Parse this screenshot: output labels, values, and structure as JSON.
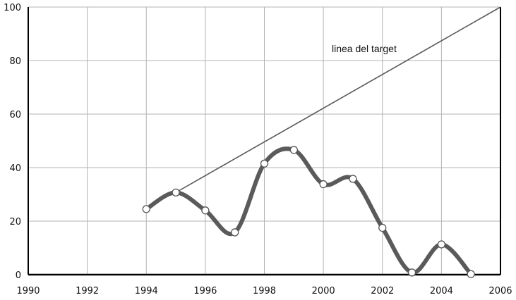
{
  "chart_data": {
    "type": "line",
    "title": "",
    "xlabel": "",
    "ylabel": "",
    "xlim": [
      1990,
      2006
    ],
    "ylim": [
      0,
      100
    ],
    "x_ticks": [
      "1990",
      "1992",
      "1994",
      "1996",
      "1998",
      "2000",
      "2002",
      "2004",
      "2006"
    ],
    "y_ticks": [
      "0",
      "20",
      "40",
      "60",
      "80",
      "100"
    ],
    "grid": true,
    "series": [
      {
        "name": "",
        "x": [
          1994,
          1995,
          1996,
          1997,
          1998,
          1999,
          2000,
          2001,
          2002,
          2003,
          2004,
          2005
        ],
        "values": [
          24.5,
          30.7,
          24,
          15.8,
          41.5,
          46.6,
          33.8,
          35.8,
          17.5,
          0.8,
          11.3,
          0.2
        ],
        "color": "#5a5a5a"
      }
    ],
    "target_line": {
      "label": "linea del target",
      "x": [
        1995,
        2006
      ],
      "values": [
        30.7,
        100
      ],
      "color": "#5a5a5a"
    },
    "colors": {
      "grid": "#b3b3b3",
      "axis": "#000000",
      "marker_fill": "#ffffff",
      "marker_stroke": "#555555"
    }
  }
}
